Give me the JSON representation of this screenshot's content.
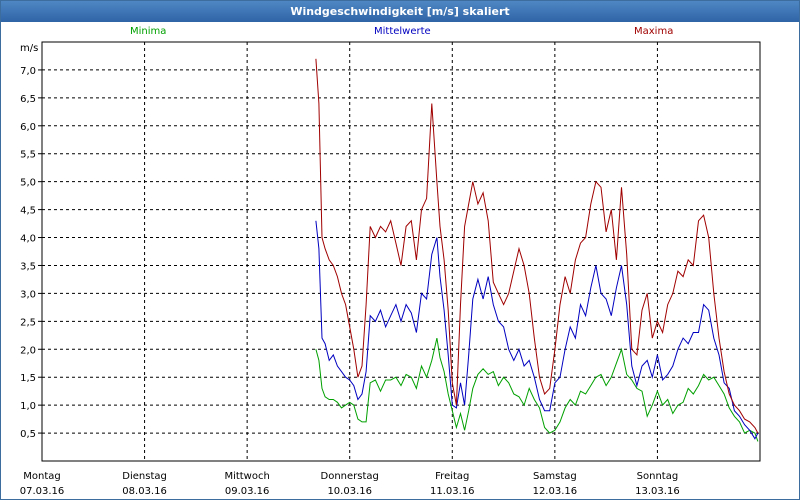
{
  "window": {
    "title": "Windgeschwindigkeit [m/s] skaliert"
  },
  "legend": {
    "min_label": "Minima",
    "mean_label": "Mittelwerte",
    "max_label": "Maxima"
  },
  "chart_data": {
    "type": "line",
    "title": "Windgeschwindigkeit [m/s] skaliert",
    "ylabel": "m/s",
    "ylim": [
      0,
      7.5
    ],
    "yticks": [
      "0,5",
      "1,0",
      "1,5",
      "2,0",
      "2,5",
      "3,0",
      "3,5",
      "4,0",
      "4,5",
      "5,0",
      "5,5",
      "6,0",
      "6,5",
      "7,0"
    ],
    "xlim": [
      0,
      7
    ],
    "xlabels": [
      {
        "day": "Montag",
        "date": "07.03.16"
      },
      {
        "day": "Dienstag",
        "date": "08.03.16"
      },
      {
        "day": "Mittwoch",
        "date": "09.03.16"
      },
      {
        "day": "Donnerstag",
        "date": "10.03.16"
      },
      {
        "day": "Freitag",
        "date": "11.03.16"
      },
      {
        "day": "Samstag",
        "date": "12.03.16"
      },
      {
        "day": "Sonntag",
        "date": "13.03.16"
      }
    ],
    "grid": true,
    "series": [
      {
        "name": "Minima",
        "color": "#00a000",
        "x": [
          2.67,
          2.7,
          2.73,
          2.76,
          2.8,
          2.84,
          2.88,
          2.92,
          2.96,
          3.0,
          3.04,
          3.08,
          3.12,
          3.16,
          3.2,
          3.25,
          3.3,
          3.35,
          3.4,
          3.45,
          3.5,
          3.55,
          3.6,
          3.65,
          3.7,
          3.75,
          3.8,
          3.85,
          3.88,
          3.92,
          3.96,
          4.0,
          4.04,
          4.08,
          4.12,
          4.16,
          4.2,
          4.25,
          4.3,
          4.35,
          4.4,
          4.45,
          4.5,
          4.55,
          4.6,
          4.65,
          4.7,
          4.75,
          4.8,
          4.85,
          4.9,
          4.95,
          5.0,
          5.05,
          5.1,
          5.15,
          5.2,
          5.25,
          5.3,
          5.35,
          5.4,
          5.45,
          5.5,
          5.55,
          5.6,
          5.65,
          5.7,
          5.75,
          5.8,
          5.85,
          5.9,
          5.95,
          6.0,
          6.05,
          6.1,
          6.15,
          6.2,
          6.25,
          6.3,
          6.35,
          6.4,
          6.45,
          6.5,
          6.55,
          6.6,
          6.65,
          6.7,
          6.75,
          6.8,
          6.85,
          6.9,
          6.95,
          6.98
        ],
        "y": [
          2.0,
          1.8,
          1.3,
          1.15,
          1.1,
          1.1,
          1.05,
          0.95,
          1.0,
          1.05,
          1.0,
          0.75,
          0.7,
          0.7,
          1.4,
          1.45,
          1.25,
          1.45,
          1.45,
          1.5,
          1.35,
          1.55,
          1.5,
          1.3,
          1.7,
          1.5,
          1.8,
          2.2,
          1.85,
          1.6,
          1.2,
          0.9,
          0.6,
          0.85,
          0.55,
          0.9,
          1.3,
          1.55,
          1.65,
          1.55,
          1.6,
          1.35,
          1.5,
          1.4,
          1.2,
          1.15,
          1.0,
          1.3,
          1.1,
          0.95,
          0.6,
          0.5,
          0.55,
          0.7,
          0.95,
          1.1,
          1.0,
          1.25,
          1.2,
          1.35,
          1.5,
          1.55,
          1.35,
          1.5,
          1.75,
          2.0,
          1.55,
          1.45,
          1.3,
          1.25,
          0.8,
          1.0,
          1.25,
          1.0,
          1.1,
          0.85,
          1.0,
          1.05,
          1.3,
          1.2,
          1.35,
          1.55,
          1.45,
          1.5,
          1.35,
          1.2,
          0.95,
          0.8,
          0.7,
          0.5,
          0.55,
          0.5,
          0.35
        ]
      },
      {
        "name": "Mittelwerte",
        "color": "#0000c0",
        "x": [
          2.67,
          2.7,
          2.73,
          2.76,
          2.8,
          2.84,
          2.88,
          2.92,
          2.96,
          3.0,
          3.04,
          3.08,
          3.12,
          3.16,
          3.2,
          3.25,
          3.3,
          3.35,
          3.4,
          3.45,
          3.5,
          3.55,
          3.6,
          3.65,
          3.7,
          3.75,
          3.8,
          3.85,
          3.88,
          3.92,
          3.96,
          4.0,
          4.04,
          4.08,
          4.12,
          4.16,
          4.2,
          4.25,
          4.3,
          4.35,
          4.4,
          4.45,
          4.5,
          4.55,
          4.6,
          4.65,
          4.7,
          4.75,
          4.8,
          4.85,
          4.9,
          4.95,
          5.0,
          5.05,
          5.1,
          5.15,
          5.2,
          5.25,
          5.3,
          5.35,
          5.4,
          5.45,
          5.5,
          5.55,
          5.6,
          5.65,
          5.7,
          5.75,
          5.8,
          5.85,
          5.9,
          5.95,
          6.0,
          6.05,
          6.1,
          6.15,
          6.2,
          6.25,
          6.3,
          6.35,
          6.4,
          6.45,
          6.5,
          6.55,
          6.6,
          6.65,
          6.7,
          6.75,
          6.8,
          6.85,
          6.9,
          6.95,
          6.98
        ],
        "y": [
          4.3,
          3.8,
          2.2,
          2.1,
          1.8,
          1.9,
          1.7,
          1.6,
          1.5,
          1.45,
          1.35,
          1.1,
          1.2,
          1.6,
          2.6,
          2.5,
          2.7,
          2.4,
          2.6,
          2.8,
          2.5,
          2.8,
          2.65,
          2.3,
          3.0,
          2.9,
          3.7,
          4.0,
          3.3,
          2.7,
          1.9,
          1.0,
          0.95,
          1.4,
          1.0,
          1.9,
          2.9,
          3.25,
          2.9,
          3.3,
          2.8,
          2.5,
          2.4,
          2.0,
          1.8,
          2.0,
          1.7,
          1.8,
          1.5,
          1.1,
          0.9,
          0.9,
          1.4,
          1.5,
          2.0,
          2.4,
          2.2,
          2.8,
          2.6,
          3.1,
          3.5,
          3.0,
          2.9,
          2.6,
          3.1,
          3.5,
          2.8,
          1.7,
          1.35,
          1.7,
          1.8,
          1.5,
          1.9,
          1.45,
          1.55,
          1.7,
          2.0,
          2.2,
          2.1,
          2.3,
          2.3,
          2.8,
          2.7,
          2.2,
          1.9,
          1.4,
          1.3,
          0.9,
          0.8,
          0.65,
          0.55,
          0.4,
          0.5
        ]
      },
      {
        "name": "Maxima",
        "color": "#a00000",
        "x": [
          2.67,
          2.7,
          2.73,
          2.76,
          2.8,
          2.84,
          2.88,
          2.92,
          2.96,
          3.0,
          3.04,
          3.08,
          3.12,
          3.16,
          3.2,
          3.25,
          3.3,
          3.35,
          3.4,
          3.45,
          3.5,
          3.55,
          3.6,
          3.65,
          3.7,
          3.75,
          3.8,
          3.85,
          3.88,
          3.92,
          3.96,
          4.0,
          4.04,
          4.08,
          4.12,
          4.16,
          4.2,
          4.25,
          4.3,
          4.35,
          4.4,
          4.45,
          4.5,
          4.55,
          4.6,
          4.65,
          4.7,
          4.75,
          4.8,
          4.85,
          4.9,
          4.95,
          5.0,
          5.05,
          5.1,
          5.15,
          5.2,
          5.25,
          5.3,
          5.35,
          5.4,
          5.45,
          5.5,
          5.55,
          5.6,
          5.65,
          5.7,
          5.75,
          5.8,
          5.85,
          5.9,
          5.95,
          6.0,
          6.05,
          6.1,
          6.15,
          6.2,
          6.25,
          6.3,
          6.35,
          6.4,
          6.45,
          6.5,
          6.55,
          6.6,
          6.65,
          6.7,
          6.75,
          6.8,
          6.85,
          6.9,
          6.95,
          6.98
        ],
        "y": [
          7.2,
          6.4,
          4.0,
          3.8,
          3.6,
          3.5,
          3.3,
          3.0,
          2.8,
          2.4,
          2.0,
          1.5,
          1.7,
          2.8,
          4.2,
          4.0,
          4.2,
          4.1,
          4.3,
          3.9,
          3.5,
          4.2,
          4.3,
          3.6,
          4.5,
          4.7,
          6.4,
          5.0,
          4.2,
          3.6,
          2.7,
          1.4,
          1.0,
          2.8,
          4.2,
          4.6,
          5.0,
          4.6,
          4.8,
          4.3,
          3.2,
          3.0,
          2.8,
          3.0,
          3.4,
          3.8,
          3.5,
          3.0,
          2.2,
          1.5,
          1.2,
          1.3,
          2.0,
          2.8,
          3.3,
          3.0,
          3.6,
          3.9,
          4.0,
          4.6,
          5.0,
          4.9,
          4.1,
          4.5,
          3.6,
          4.9,
          3.7,
          2.0,
          1.9,
          2.7,
          3.0,
          2.2,
          2.5,
          2.3,
          2.8,
          3.0,
          3.4,
          3.3,
          3.6,
          3.5,
          4.3,
          4.4,
          4.0,
          3.0,
          2.2,
          1.6,
          1.2,
          1.0,
          0.9,
          0.75,
          0.7,
          0.6,
          0.5
        ]
      }
    ]
  }
}
